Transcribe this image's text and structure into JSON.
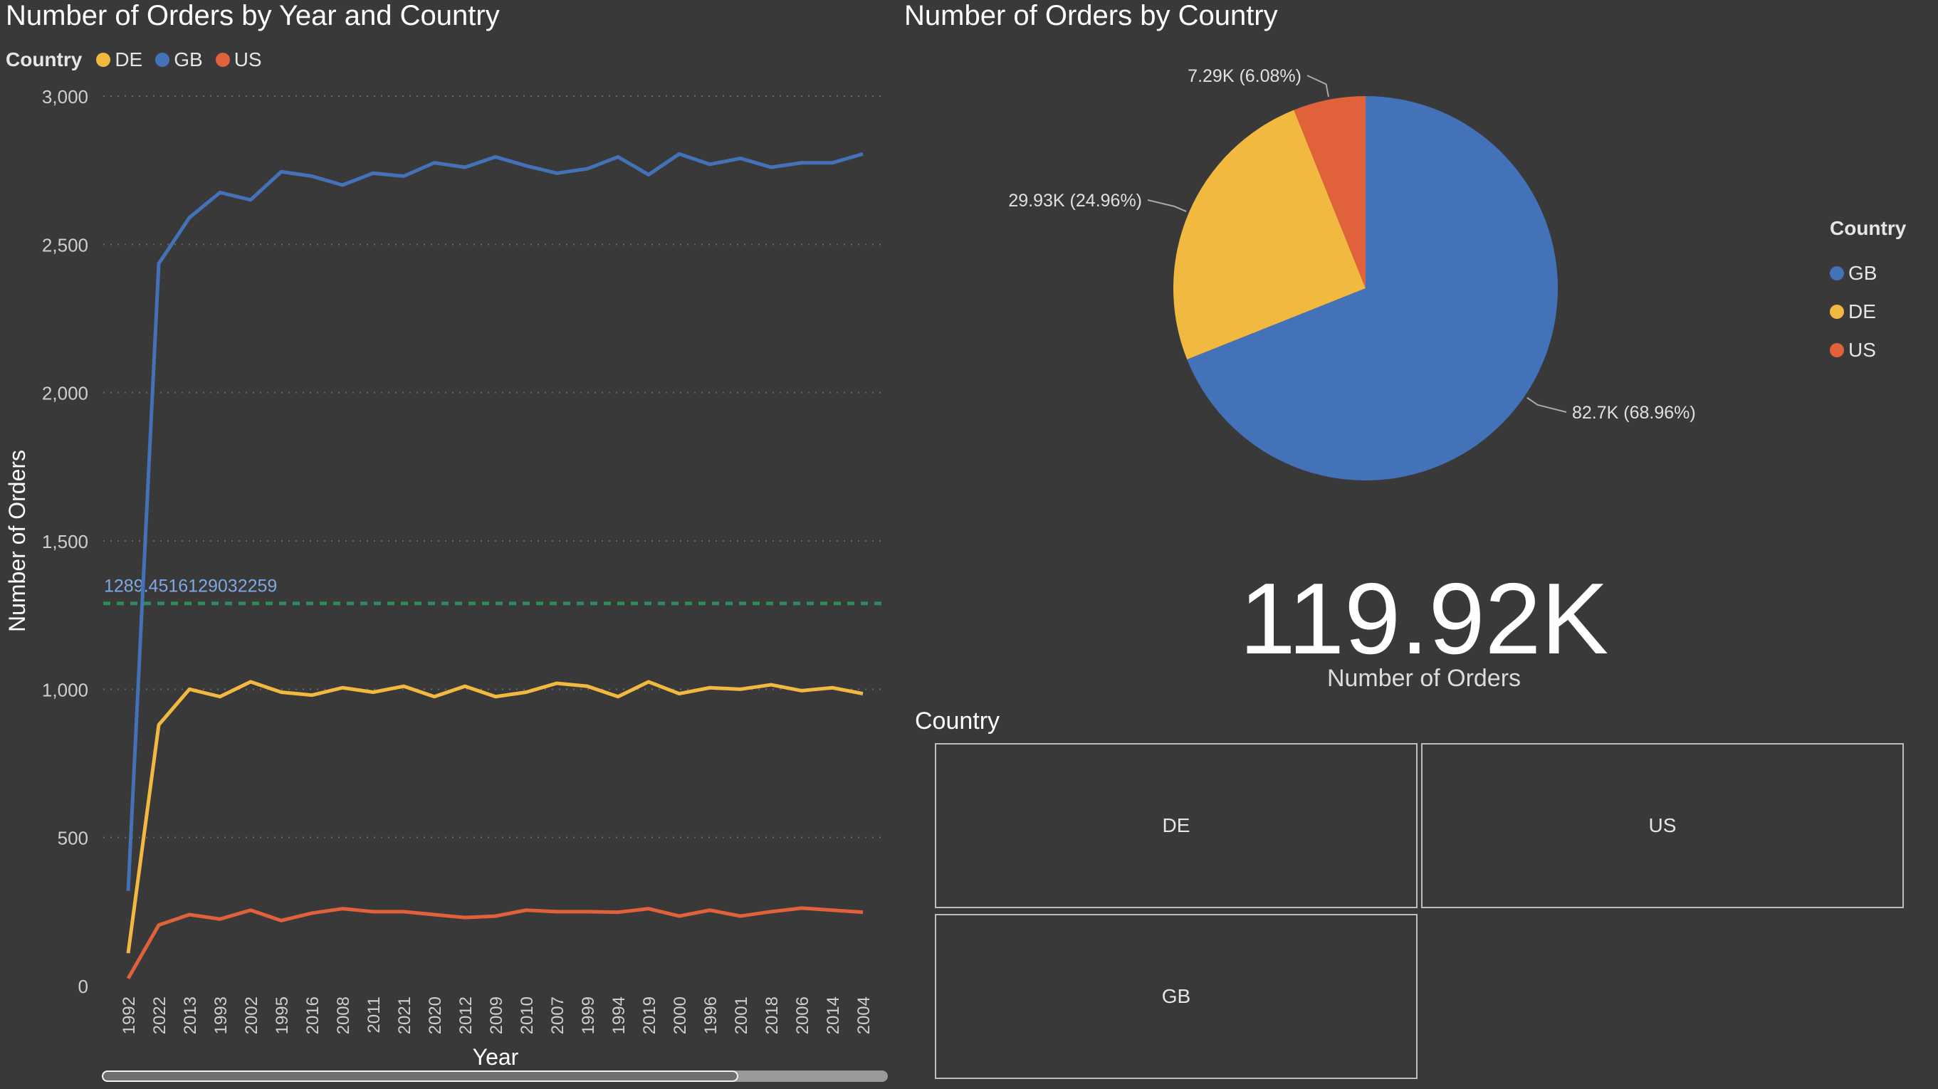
{
  "line_chart": {
    "title": "Number of Orders by Year and Country",
    "legend_heading": "Country",
    "xlabel": "Year",
    "ylabel": "Number of Orders",
    "ref_label": "1289.4516129032259"
  },
  "pie_chart": {
    "title": "Number of Orders by Country",
    "legend_heading": "Country"
  },
  "kpi": {
    "value": "119.92K",
    "label": "Number of Orders"
  },
  "slicer": {
    "title": "Country",
    "tiles": [
      "DE",
      "US",
      "GB"
    ]
  },
  "colors": {
    "GB": "#4472b8",
    "DE": "#f2b941",
    "US": "#e0613a",
    "reference": "#2e8b57",
    "background": "#393939"
  },
  "chart_data": [
    {
      "type": "line",
      "title": "Number of Orders by Year and Country",
      "xlabel": "Year",
      "ylabel": "Number of Orders",
      "x": [
        "1992",
        "2022",
        "2013",
        "1993",
        "2002",
        "1995",
        "2016",
        "2008",
        "2011",
        "2021",
        "2020",
        "2012",
        "2009",
        "2010",
        "2007",
        "1999",
        "1994",
        "2019",
        "2000",
        "1996",
        "2001",
        "2018",
        "2006",
        "2014",
        "2004"
      ],
      "ylim": [
        0,
        3000
      ],
      "yticks": [
        0,
        500,
        1000,
        1500,
        2000,
        2500,
        3000
      ],
      "ytick_labels": [
        "0",
        "500",
        "1,000",
        "1,500",
        "2,000",
        "2,500",
        "3,000"
      ],
      "grid": true,
      "legend": {
        "title": "Country",
        "placement": "top-left",
        "entries": [
          "DE",
          "GB",
          "US"
        ]
      },
      "series": [
        {
          "name": "DE",
          "color": "#f2b941",
          "values": [
            110,
            880,
            1000,
            975,
            1025,
            990,
            980,
            1005,
            990,
            1010,
            975,
            1010,
            975,
            990,
            1020,
            1010,
            975,
            1025,
            985,
            1005,
            1000,
            1015,
            995,
            1005,
            985
          ]
        },
        {
          "name": "GB",
          "color": "#4472b8",
          "values": [
            320,
            2435,
            2590,
            2675,
            2650,
            2745,
            2730,
            2700,
            2740,
            2730,
            2775,
            2760,
            2795,
            2765,
            2740,
            2755,
            2795,
            2735,
            2805,
            2770,
            2790,
            2760,
            2775,
            2775,
            2805
          ]
        },
        {
          "name": "US",
          "color": "#e0613a",
          "values": [
            25,
            205,
            240,
            225,
            255,
            220,
            245,
            260,
            250,
            250,
            240,
            230,
            235,
            255,
            250,
            250,
            248,
            260,
            235,
            255,
            235,
            250,
            262,
            255,
            248
          ]
        }
      ],
      "reference_line": {
        "value": 1289.4516129032259,
        "label": "1289.4516129032259",
        "style": "dashed",
        "color": "#2e8b57"
      }
    },
    {
      "type": "pie",
      "title": "Number of Orders by Country",
      "legend": {
        "title": "Country",
        "placement": "right",
        "entries": [
          "GB",
          "DE",
          "US"
        ]
      },
      "slices": [
        {
          "name": "GB",
          "value": 82700,
          "label": "82.7K (68.96%)",
          "color": "#4472b8"
        },
        {
          "name": "DE",
          "value": 29930,
          "label": "29.93K (24.96%)",
          "color": "#f2b941"
        },
        {
          "name": "US",
          "value": 7290,
          "label": "7.29K (6.08%)",
          "color": "#e0613a"
        }
      ]
    }
  ]
}
